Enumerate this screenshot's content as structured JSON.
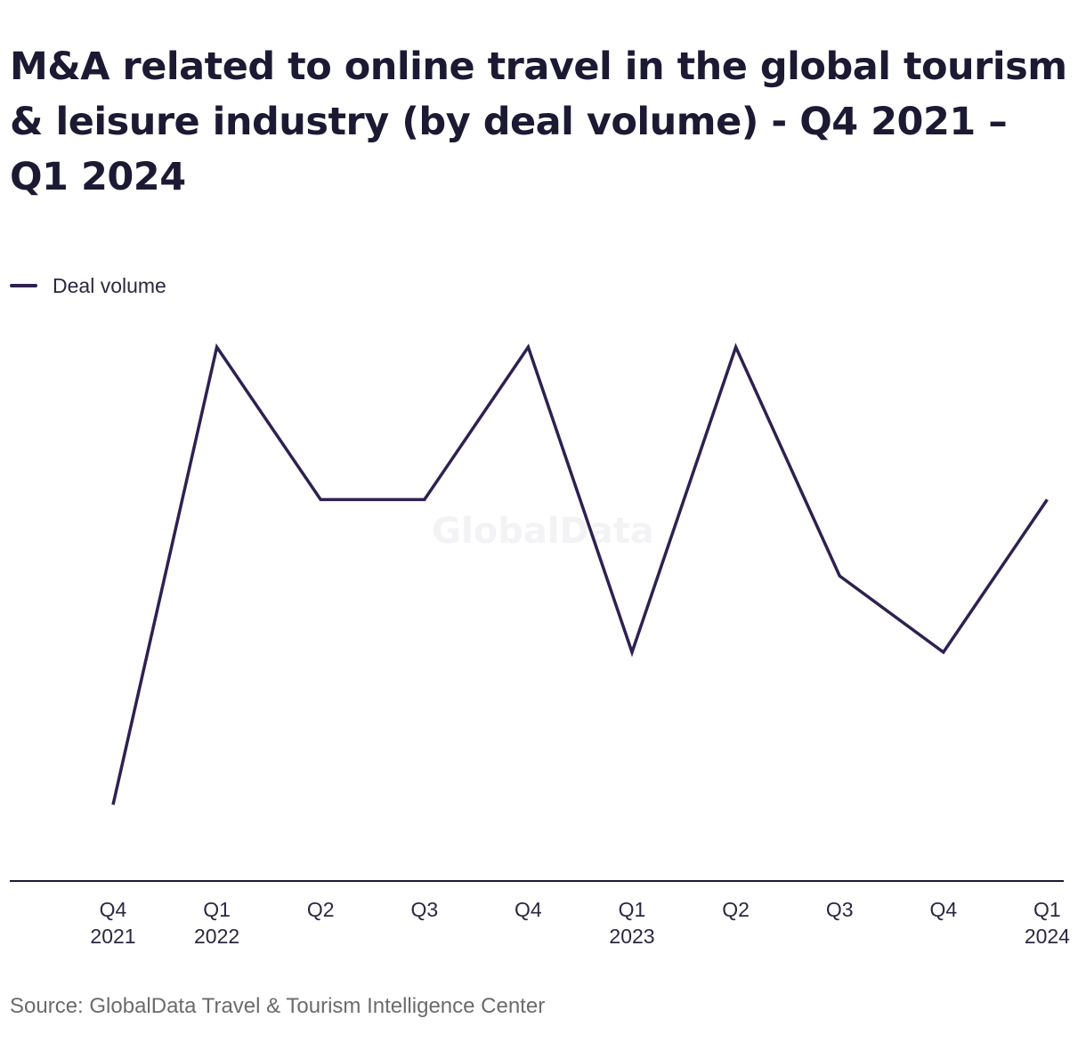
{
  "colors": {
    "series": "#2e2150",
    "axis": "#1c1a33",
    "text": "#1c1a33",
    "source_text": "#6b6b6b"
  },
  "watermark": "GlobalData",
  "source": "Source: GlobalData Travel & Tourism Intelligence Center",
  "chart_data": {
    "type": "line",
    "title": "M&A related to online travel in the global tourism & leisure industry (by deal volume) - Q4 2021 – Q1 2024",
    "xlabel": "",
    "ylabel": "",
    "legend": "top-left",
    "grid": false,
    "categories": [
      [
        "Q4",
        "2021"
      ],
      [
        "Q1",
        "2022"
      ],
      [
        "Q2"
      ],
      [
        "Q3"
      ],
      [
        "Q4"
      ],
      [
        "Q1",
        "2023"
      ],
      [
        "Q2"
      ],
      [
        "Q3"
      ],
      [
        "Q4"
      ],
      [
        "Q1",
        "2024"
      ]
    ],
    "ylim": [
      0,
      8
    ],
    "series": [
      {
        "name": "Deal volume",
        "values": [
          1,
          7,
          5,
          5,
          7,
          3,
          7,
          4,
          3,
          5
        ]
      }
    ]
  }
}
